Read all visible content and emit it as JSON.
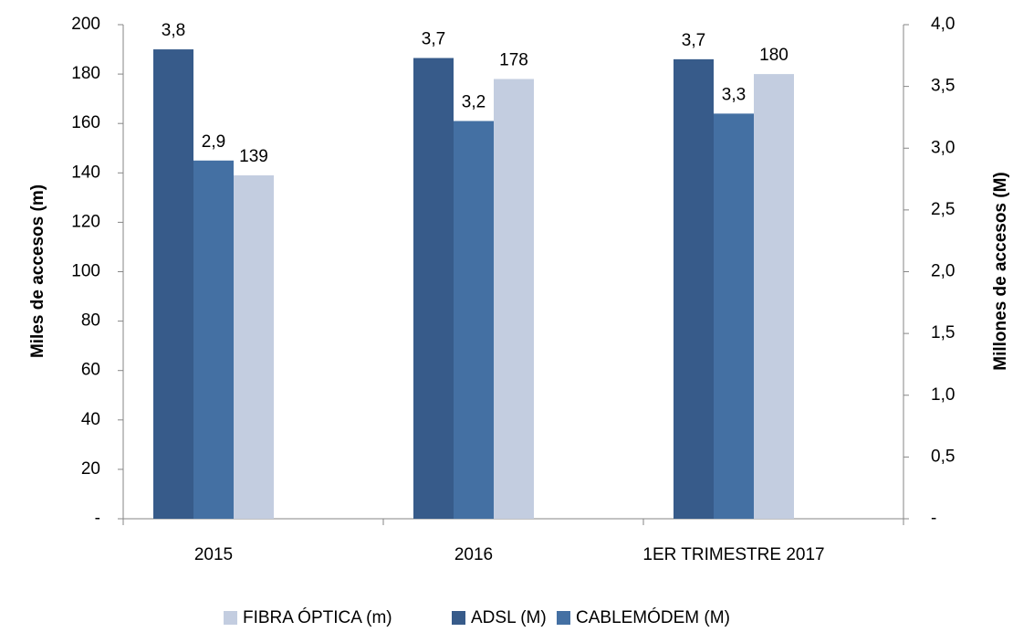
{
  "chart_data": {
    "type": "bar",
    "categories": [
      "2015",
      "2016",
      "1ER TRIMESTRE 2017"
    ],
    "ylabel": "Miles de accesos (m)",
    "y2label": "Millones de accesos (M)",
    "ylim": [
      0,
      200
    ],
    "yticks": [
      {
        "value": 0,
        "label": "-"
      },
      20,
      40,
      60,
      80,
      100,
      120,
      140,
      160,
      180,
      200
    ],
    "y2lim": [
      0,
      4
    ],
    "y2ticks": [
      {
        "value": 0,
        "label": "-"
      },
      {
        "value": 0.5,
        "label": "0,5"
      },
      {
        "value": 1,
        "label": "1,0"
      },
      {
        "value": 1.5,
        "label": "1,5"
      },
      {
        "value": 2,
        "label": "2,0"
      },
      {
        "value": 2.5,
        "label": "2,5"
      },
      {
        "value": 3,
        "label": "3,0"
      },
      {
        "value": 3.5,
        "label": "3,5"
      },
      {
        "value": 4,
        "label": "4,0"
      }
    ],
    "series": [
      {
        "name": "FIBRA ÓPTICA (m)",
        "color": "#c3cde0",
        "values": [
          139,
          178,
          180
        ]
      },
      {
        "name": "ADSL (M)",
        "color": "#375b8a",
        "axis": "y2",
        "values": [
          3.8,
          3.73,
          3.72
        ],
        "value_labels": [
          "3,8",
          "3,7",
          "3,7"
        ]
      },
      {
        "name": "CABLEMÓDEM (M)",
        "color": "#4470a3",
        "axis": "y2",
        "values": [
          2.9,
          3.22,
          3.28
        ],
        "value_labels": [
          "2,9",
          "3,2",
          "3,3"
        ]
      }
    ],
    "legend": "bottom"
  }
}
